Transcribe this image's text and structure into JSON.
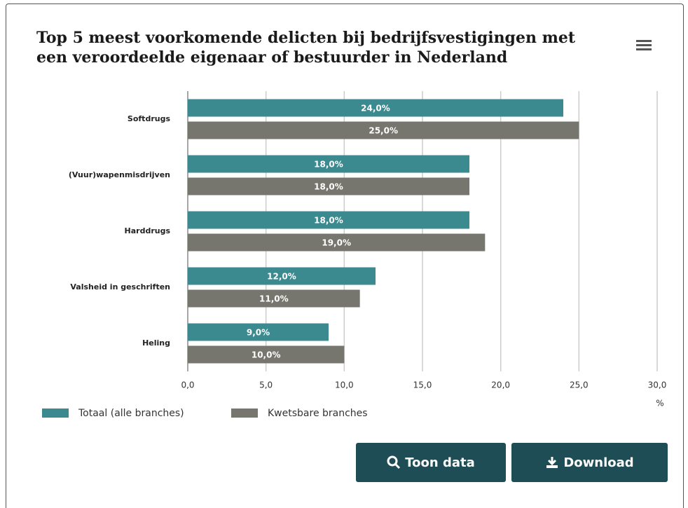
{
  "chart_data": {
    "type": "bar",
    "orientation": "horizontal",
    "title": "Top 5 meest voorkomende delicten bij bedrijfsvestigingen met een veroordeelde eigenaar of bestuurder in Nederland",
    "categories": [
      "Softdrugs",
      "(Vuur)wapenmisdrijven",
      "Harddrugs",
      "Valsheid in geschriften",
      "Heling"
    ],
    "series": [
      {
        "name": "Totaal (alle branches)",
        "color": "#3b8a8f",
        "values": [
          24,
          18,
          18,
          12,
          9
        ],
        "value_labels": [
          "24,0%",
          "18,0%",
          "18,0%",
          "12,0%",
          "9,0%"
        ]
      },
      {
        "name": "Kwetsbare branches",
        "color": "#77766e",
        "values": [
          25,
          18,
          19,
          11,
          10
        ],
        "value_labels": [
          "25,0%",
          "18,0%",
          "19,0%",
          "11,0%",
          "10,0%"
        ]
      }
    ],
    "x_label": "%",
    "xlim": [
      0,
      30
    ],
    "xticks": [
      {
        "value": 0,
        "label": "0,0"
      },
      {
        "value": 5,
        "label": "5,0"
      },
      {
        "value": 10,
        "label": "10,0"
      },
      {
        "value": 15,
        "label": "15,0"
      },
      {
        "value": 20,
        "label": "20,0"
      },
      {
        "value": 25,
        "label": "25,0"
      },
      {
        "value": 30,
        "label": "30,0"
      }
    ],
    "grid": true,
    "legend": "bottom-left"
  },
  "ui": {
    "buttons": [
      "Toon data",
      "Download"
    ]
  }
}
